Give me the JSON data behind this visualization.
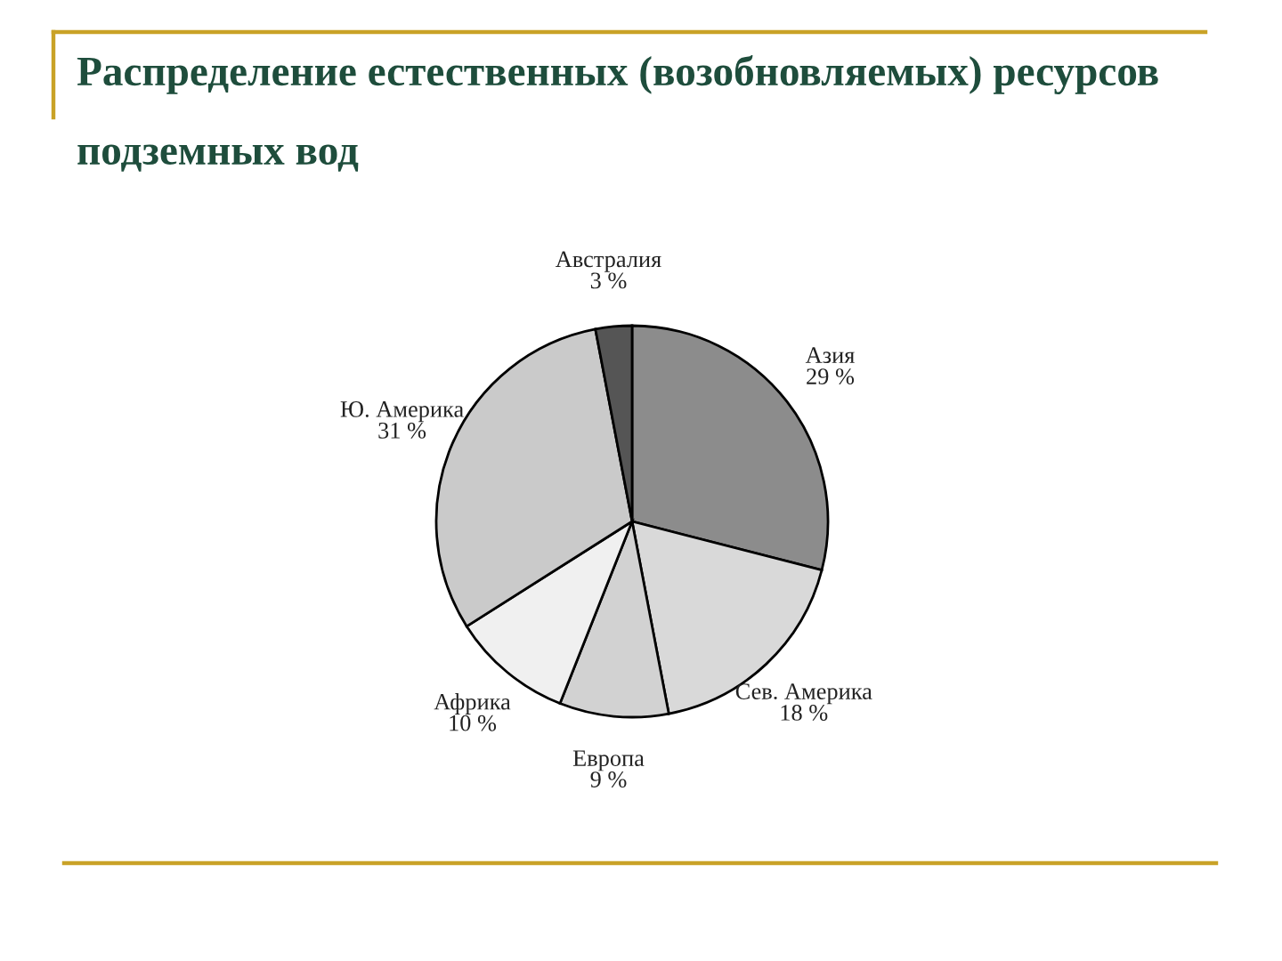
{
  "chart_data": {
    "type": "pie",
    "title": "Распределение естественных (возобновляемых) ресурсов подземных вод",
    "categories": [
      "Азия",
      "Сев. Америка",
      "Европа",
      "Африка",
      "Ю. Америка",
      "Австралия"
    ],
    "values": [
      29,
      18,
      9,
      10,
      31,
      3
    ],
    "value_labels": [
      "29 %",
      "18 %",
      "9 %",
      "10 %",
      "31 %",
      "3 %"
    ],
    "colors": [
      "#8c8c8c",
      "#d9d9d9",
      "#d2d2d2",
      "#f0f0f0",
      "#cacaca",
      "#555555"
    ]
  }
}
